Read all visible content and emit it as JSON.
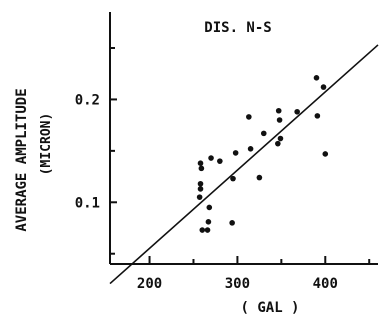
{
  "chart_data": {
    "type": "scatter",
    "title": "DIS. N-S",
    "xlabel": "( GAL )",
    "ylabel_main": "AVERAGE AMPLITUDE",
    "ylabel_unit": "(MICRON)",
    "xlim": [
      155,
      460
    ],
    "ylim": [
      0.04,
      0.285
    ],
    "xticks": [
      200,
      300,
      400
    ],
    "xtick_labels": [
      "200",
      "300",
      "400"
    ],
    "yticks": [
      0.1,
      0.2
    ],
    "ytick_labels": [
      "0.1",
      "0.2"
    ],
    "x_minor_ticks": [
      250,
      350,
      450
    ],
    "y_minor_ticks": [
      0.05,
      0.15,
      0.25
    ],
    "grid": false,
    "points": [
      {
        "x": 258,
        "y": 0.138
      },
      {
        "x": 259,
        "y": 0.133
      },
      {
        "x": 258,
        "y": 0.118
      },
      {
        "x": 258,
        "y": 0.113
      },
      {
        "x": 257,
        "y": 0.105
      },
      {
        "x": 260,
        "y": 0.073
      },
      {
        "x": 266,
        "y": 0.073
      },
      {
        "x": 267,
        "y": 0.081
      },
      {
        "x": 268,
        "y": 0.095
      },
      {
        "x": 270,
        "y": 0.143
      },
      {
        "x": 280,
        "y": 0.14
      },
      {
        "x": 294,
        "y": 0.08
      },
      {
        "x": 295,
        "y": 0.123
      },
      {
        "x": 298,
        "y": 0.148
      },
      {
        "x": 313,
        "y": 0.183
      },
      {
        "x": 315,
        "y": 0.152
      },
      {
        "x": 325,
        "y": 0.124
      },
      {
        "x": 330,
        "y": 0.167
      },
      {
        "x": 346,
        "y": 0.157
      },
      {
        "x": 347,
        "y": 0.189
      },
      {
        "x": 348,
        "y": 0.18
      },
      {
        "x": 349,
        "y": 0.162
      },
      {
        "x": 368,
        "y": 0.188
      },
      {
        "x": 390,
        "y": 0.221
      },
      {
        "x": 391,
        "y": 0.184
      },
      {
        "x": 398,
        "y": 0.212
      },
      {
        "x": 400,
        "y": 0.147
      }
    ],
    "fit_line": [
      {
        "x": 155,
        "y": 0.021
      },
      {
        "x": 460,
        "y": 0.253
      }
    ]
  }
}
